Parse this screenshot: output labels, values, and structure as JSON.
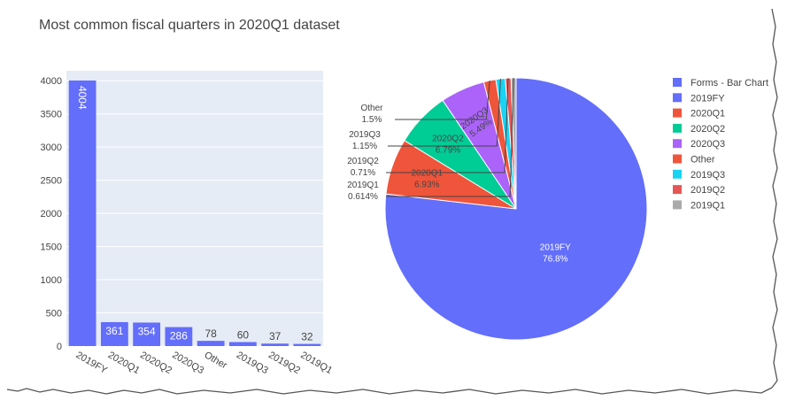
{
  "title": "Most common fiscal quarters in 2020Q1 dataset",
  "colors": {
    "plot_bg": "#e5ecf6",
    "grid": "#ffffff",
    "bar": "#636efa",
    "text": "#444444",
    "slices": [
      "#636efa",
      "#ef553b",
      "#00cc96",
      "#ab63fa",
      "#ef553b",
      "#19d3f3",
      "#e45756",
      "#aaaaaa"
    ]
  },
  "chart_data": [
    {
      "type": "bar",
      "legend_name": "Forms - Bar Chart",
      "categories": [
        "2019FY",
        "2020Q1",
        "2020Q2",
        "2020Q3",
        "Other",
        "2019Q3",
        "2019Q2",
        "2019Q1"
      ],
      "values": [
        4004,
        361,
        354,
        286,
        78,
        60,
        37,
        32
      ],
      "data_labels": [
        "4004",
        "361",
        "354",
        "286",
        "78",
        "60",
        "37",
        "32"
      ],
      "ylim": [
        0,
        4150
      ],
      "yticks": [
        0,
        500,
        1000,
        1500,
        2000,
        2500,
        3000,
        3500,
        4000
      ],
      "grid": true
    },
    {
      "type": "pie",
      "labels": [
        "2019FY",
        "2020Q1",
        "2020Q2",
        "2020Q3",
        "Other",
        "2019Q3",
        "2019Q2",
        "2019Q1"
      ],
      "values": [
        4004,
        361,
        354,
        286,
        78,
        60,
        37,
        32
      ],
      "percent_labels": [
        "76.8%",
        "6.93%",
        "6.79%",
        "5.49%",
        "1.5%",
        "1.15%",
        "0.71%",
        "0.614%"
      ],
      "legend": {
        "placement": "top-right",
        "items": [
          "Forms - Bar Chart",
          "2019FY",
          "2020Q1",
          "2020Q2",
          "2020Q3",
          "Other",
          "2019Q3",
          "2019Q2",
          "2019Q1"
        ]
      }
    }
  ]
}
